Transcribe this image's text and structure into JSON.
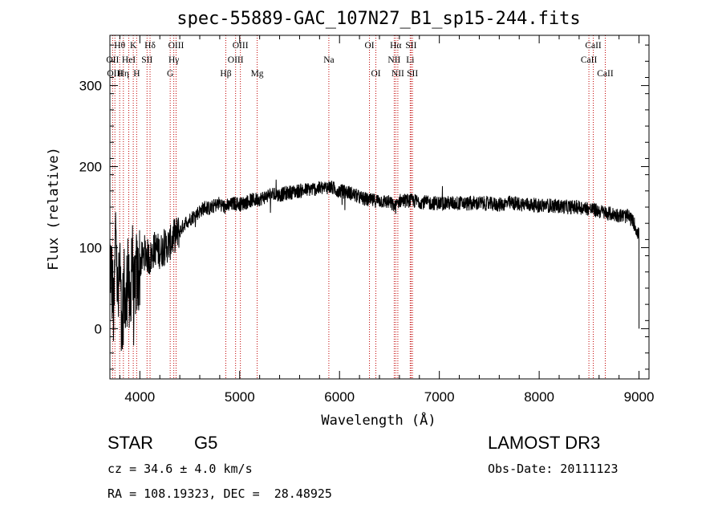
{
  "chart_data": {
    "type": "line",
    "title": "spec-55889-GAC_107N27_B1_sp15-244.fits",
    "xlabel": "Wavelength (Å)",
    "ylabel": "Flux (relative)",
    "xlim": [
      3700,
      9100
    ],
    "ylim": [
      -62,
      362
    ],
    "x_ticks": [
      4000,
      5000,
      6000,
      7000,
      8000,
      9000
    ],
    "y_ticks": [
      0,
      100,
      200,
      300
    ],
    "x_tick_labels": [
      "4000",
      "5000",
      "6000",
      "7000",
      "8000",
      "9000"
    ],
    "y_tick_labels": [
      "0",
      "100",
      "200",
      "300"
    ],
    "grid": false,
    "series": [
      {
        "name": "flux",
        "color": "#000000",
        "x": [
          3700,
          3720,
          3740,
          3760,
          3780,
          3800,
          3820,
          3840,
          3860,
          3880,
          3900,
          3920,
          3940,
          3960,
          3980,
          4000,
          4050,
          4100,
          4150,
          4200,
          4250,
          4300,
          4350,
          4400,
          4450,
          4500,
          4550,
          4600,
          4650,
          4700,
          4750,
          4800,
          4850,
          4900,
          4950,
          5000,
          5100,
          5200,
          5300,
          5400,
          5500,
          5600,
          5700,
          5800,
          5900,
          6000,
          6100,
          6200,
          6300,
          6400,
          6500,
          6560,
          6600,
          6700,
          6800,
          6900,
          7000,
          7100,
          7200,
          7300,
          7400,
          7500,
          7600,
          7700,
          7800,
          7900,
          8000,
          8100,
          8200,
          8300,
          8400,
          8500,
          8600,
          8700,
          8800,
          8900,
          8950,
          9000
        ],
        "y": [
          90,
          60,
          10,
          140,
          20,
          80,
          -30,
          60,
          10,
          90,
          0,
          110,
          20,
          70,
          60,
          80,
          95,
          85,
          100,
          95,
          100,
          105,
          115,
          120,
          130,
          135,
          140,
          145,
          150,
          148,
          152,
          155,
          150,
          152,
          155,
          153,
          158,
          160,
          165,
          165,
          168,
          170,
          172,
          173,
          175,
          170,
          168,
          162,
          158,
          158,
          156,
          150,
          158,
          158,
          157,
          155,
          155,
          155,
          155,
          154,
          155,
          154,
          153,
          155,
          154,
          153,
          152,
          152,
          151,
          150,
          150,
          148,
          145,
          142,
          140,
          138,
          130,
          115
        ]
      }
    ],
    "line_markers": [
      {
        "label": "Hθ",
        "wavelength": 3798,
        "row": 0
      },
      {
        "label": "K",
        "wavelength": 3934,
        "row": 0
      },
      {
        "label": "Hδ",
        "wavelength": 4102,
        "row": 0
      },
      {
        "label": "OIII",
        "wavelength": 4363,
        "row": 0
      },
      {
        "label": "OIII",
        "wavelength": 5007,
        "row": 0
      },
      {
        "label": "OI",
        "wavelength": 6300,
        "row": 0
      },
      {
        "label": "Hα",
        "wavelength": 6563,
        "row": 0
      },
      {
        "label": "SII",
        "wavelength": 6717,
        "row": 0
      },
      {
        "label": "CaII",
        "wavelength": 8542,
        "row": 0
      },
      {
        "label": "OII",
        "wavelength": 3727,
        "row": 1
      },
      {
        "label": "HeI",
        "wavelength": 3889,
        "row": 1
      },
      {
        "label": "SII",
        "wavelength": 4072,
        "row": 1
      },
      {
        "label": "Hγ",
        "wavelength": 4340,
        "row": 1
      },
      {
        "label": "OIII",
        "wavelength": 4959,
        "row": 1
      },
      {
        "label": "Na",
        "wavelength": 5893,
        "row": 1
      },
      {
        "label": "NII",
        "wavelength": 6548,
        "row": 1
      },
      {
        "label": "Li",
        "wavelength": 6708,
        "row": 1
      },
      {
        "label": "CaII",
        "wavelength": 8498,
        "row": 1
      },
      {
        "label": "OIII",
        "wavelength": 3750,
        "row": 2
      },
      {
        "label": "Hη",
        "wavelength": 3835,
        "row": 2
      },
      {
        "label": "H",
        "wavelength": 3968,
        "row": 2
      },
      {
        "label": "G",
        "wavelength": 4304,
        "row": 2
      },
      {
        "label": "Hβ",
        "wavelength": 4861,
        "row": 2
      },
      {
        "label": "Mg",
        "wavelength": 5175,
        "row": 2
      },
      {
        "label": "OI",
        "wavelength": 6364,
        "row": 2
      },
      {
        "label": "NII",
        "wavelength": 6584,
        "row": 2
      },
      {
        "label": "SII",
        "wavelength": 6731,
        "row": 2
      },
      {
        "label": "CaII",
        "wavelength": 8662,
        "row": 2
      }
    ]
  },
  "info": {
    "object_class": "STAR",
    "subclass": "G5",
    "survey": "LAMOST DR3",
    "redshift": "cz = 34.6 ± 4.0 km/s",
    "obs_date": "Obs-Date: 20111123",
    "coords": "RA = 108.19323, DEC =  28.48925"
  }
}
